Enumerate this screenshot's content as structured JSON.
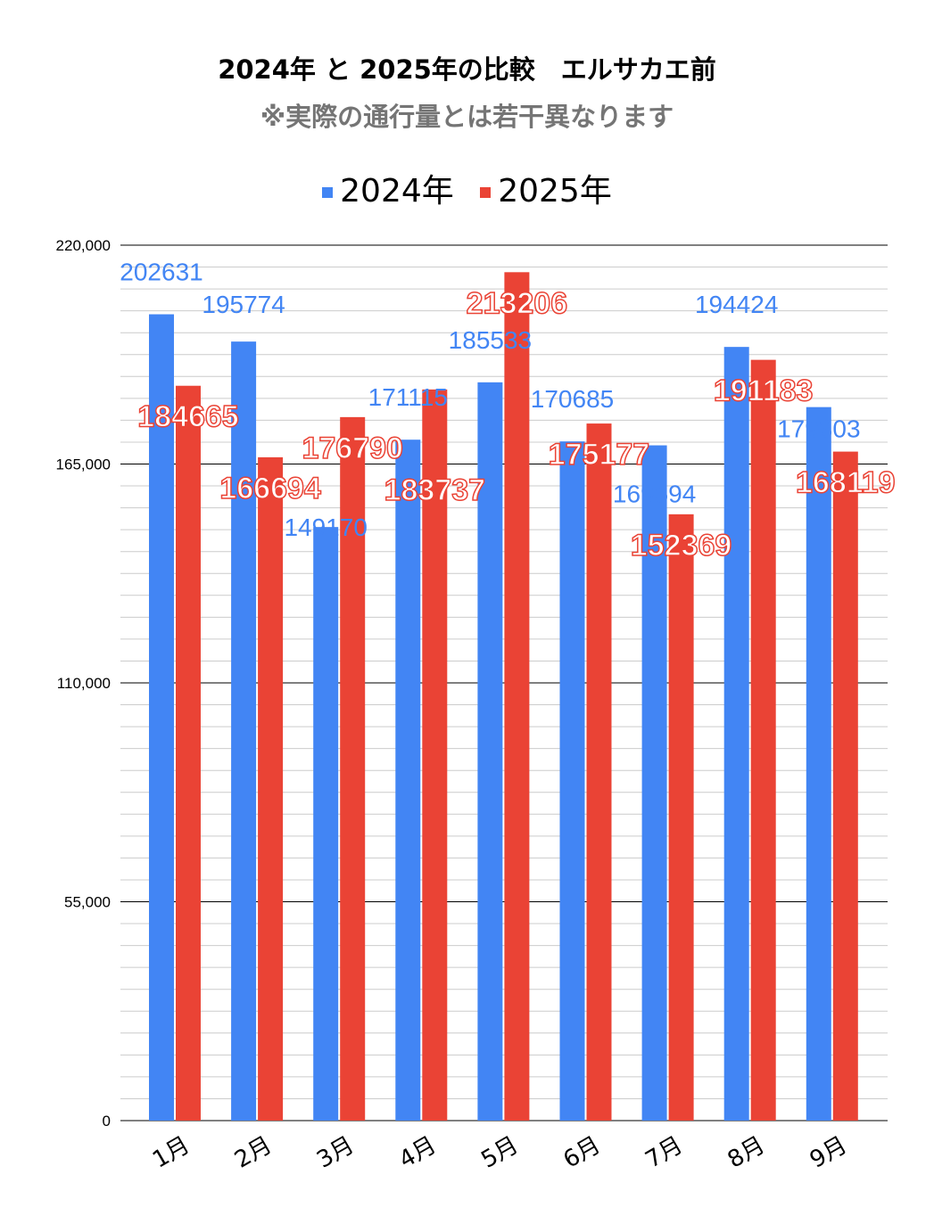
{
  "chart_data": {
    "type": "bar",
    "title": "2024年 と 2025年の比較　エルサカエ前",
    "subtitle": "※実際の通行量とは若干異なります",
    "categories": [
      "1月",
      "2月",
      "3月",
      "4月",
      "5月",
      "6月",
      "7月",
      "8月",
      "9月"
    ],
    "series": [
      {
        "name": "2024年",
        "color": "#4285f4",
        "values": [
          202631,
          195774,
          149170,
          171115,
          185533,
          170685,
          169694,
          194424,
          179303
        ]
      },
      {
        "name": "2025年",
        "color": "#ea4335",
        "values": [
          184665,
          166694,
          176790,
          183737,
          213206,
          175177,
          152369,
          191183,
          168119
        ]
      }
    ],
    "yticks": [
      "0",
      "55,000",
      "110,000",
      "165,000",
      "220,000"
    ],
    "ylim": [
      0,
      220000
    ],
    "legend": "top-center",
    "grid": true
  }
}
